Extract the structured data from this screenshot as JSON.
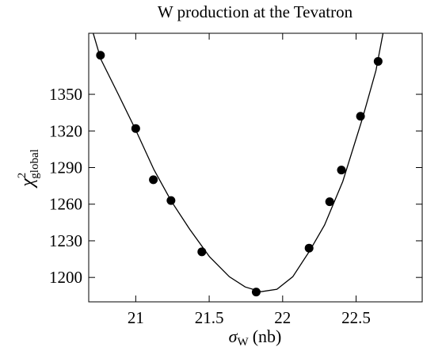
{
  "chart_data": {
    "type": "scatter",
    "title": "W production at the Tevatron",
    "x_label": {
      "symbol": "σ",
      "sub": "W",
      "unit": "(nb)"
    },
    "y_label": {
      "symbol": "χ",
      "sup": "2",
      "sub": "global"
    },
    "xlim": [
      20.68,
      22.95
    ],
    "ylim": [
      1180,
      1400
    ],
    "xticks": [
      21,
      21.5,
      22,
      22.5
    ],
    "yticks": [
      1200,
      1230,
      1260,
      1290,
      1320,
      1350
    ],
    "series": [
      {
        "mode": "markers",
        "color": "#000000",
        "x": [
          20.76,
          21.0,
          21.12,
          21.24,
          21.45,
          21.82,
          22.18,
          22.32,
          22.4,
          22.53,
          22.65
        ],
        "values": [
          1382,
          1322,
          1280,
          1263,
          1221,
          1188,
          1224,
          1262,
          1288,
          1332,
          1377
        ]
      },
      {
        "mode": "line",
        "color": "#000000",
        "x": [
          20.709,
          20.763,
          20.881,
          21.0,
          21.124,
          21.243,
          21.367,
          21.502,
          21.637,
          21.745,
          21.853,
          21.961,
          22.069,
          22.182,
          22.285,
          22.409,
          22.544,
          22.635,
          22.684
        ],
        "values": [
          1400.6,
          1378.6,
          1350,
          1320.8,
          1288.3,
          1262.3,
          1239.6,
          1216.9,
          1200.6,
          1192.2,
          1188.3,
          1190.3,
          1200.6,
          1221.4,
          1242.9,
          1278.6,
          1330.5,
          1369.5,
          1400.6
        ]
      }
    ]
  }
}
